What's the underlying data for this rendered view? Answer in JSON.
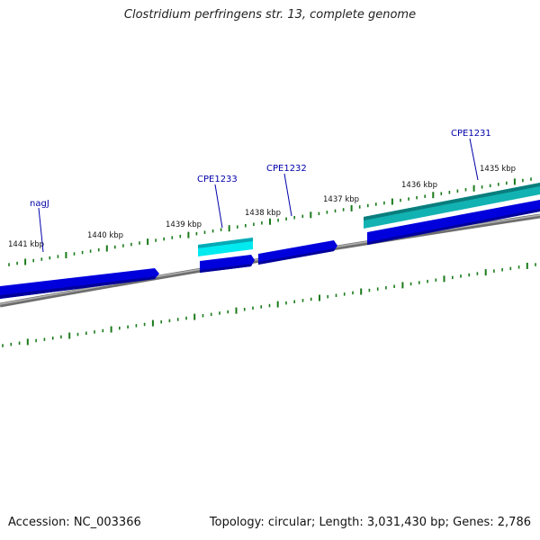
{
  "title": "Clostridium perfringens str. 13, complete genome",
  "footer": {
    "accession": "Accession: NC_003366",
    "topology": "Topology: circular; Length: 3,031,430 bp; Genes: 2,786"
  },
  "colors": {
    "gene_dark": "#0000dd",
    "gene_cyan": "#00e5ee",
    "gene_teal": "#12b2b2",
    "backbone": "#888888",
    "tick": "#1a7a1a",
    "label": "#0000aa"
  },
  "scale": {
    "ticks": [
      {
        "label": "1435 kbp"
      },
      {
        "label": "1436 kbp"
      },
      {
        "label": "1437 kbp"
      },
      {
        "label": "1438 kbp"
      },
      {
        "label": "1439 kbp"
      },
      {
        "label": "1440 kbp"
      },
      {
        "label": "1441 kbp"
      }
    ]
  },
  "genes": [
    {
      "name": "CPE1231"
    },
    {
      "name": "CPE1232"
    },
    {
      "name": "CPE1233"
    },
    {
      "name": "nagJ"
    }
  ]
}
